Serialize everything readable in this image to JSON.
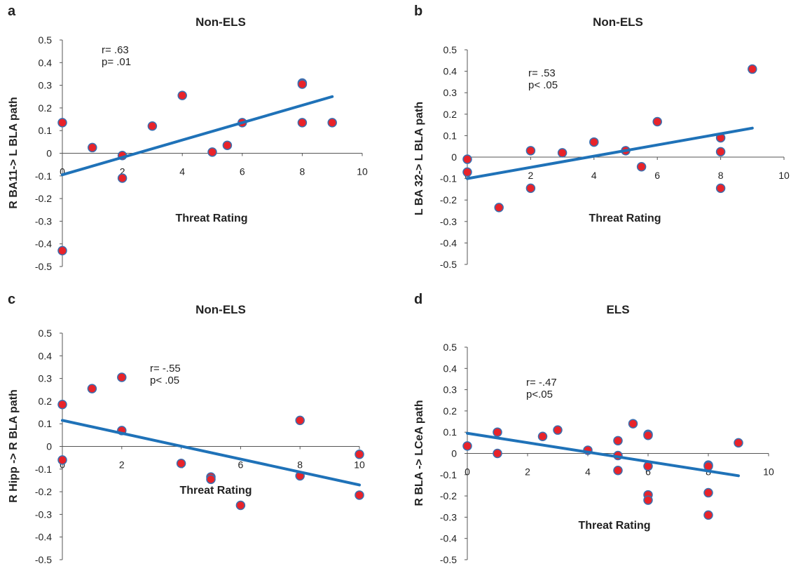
{
  "colors": {
    "point_fill": "#e8232a",
    "point_stroke": "#3a6fb0",
    "fit_line": "#1f72b8",
    "axis": "#555555"
  },
  "chart_data": [
    {
      "type": "scatter",
      "panel": "a",
      "title": "Non-ELS",
      "xlabel": "Threat Rating",
      "ylabel": "R BA11-> L BLA path",
      "xlim": [
        0,
        10
      ],
      "ylim": [
        -0.5,
        0.5
      ],
      "xticks": [
        "0",
        "2",
        "4",
        "6",
        "8",
        "10"
      ],
      "yticks": [
        "0.5",
        "0.4",
        "0.3",
        "0.2",
        "0.1",
        "0",
        "-0.1",
        "-0.2",
        "-0.3",
        "-0.4",
        "-0.5"
      ],
      "annotation": [
        "r= .63",
        "p= .01"
      ],
      "points": [
        [
          0,
          0.135
        ],
        [
          0,
          -0.43
        ],
        [
          1,
          0.025
        ],
        [
          2,
          -0.01
        ],
        [
          2,
          -0.11
        ],
        [
          3,
          0.12
        ],
        [
          4,
          0.255
        ],
        [
          5,
          0.005
        ],
        [
          5.5,
          0.035
        ],
        [
          6,
          0.135
        ],
        [
          8,
          0.31
        ],
        [
          8,
          0.305
        ],
        [
          8,
          0.135
        ],
        [
          9,
          0.135
        ]
      ],
      "fit": [
        [
          0,
          -0.095
        ],
        [
          9,
          0.25
        ]
      ],
      "grid": false
    },
    {
      "type": "scatter",
      "panel": "b",
      "title": "Non-ELS",
      "xlabel": "Threat Rating",
      "ylabel": "L BA 32-> L BLA path",
      "xlim": [
        0,
        10
      ],
      "ylim": [
        -0.5,
        0.5
      ],
      "xticks": [
        "0",
        "2",
        "4",
        "6",
        "8",
        "10"
      ],
      "yticks": [
        "0.5",
        "0.4",
        "0.3",
        "0.2",
        "0.1",
        "0",
        "-0.1",
        "-0.2",
        "-0.3",
        "-0.4",
        "-0.5"
      ],
      "annotation": [
        "r= .53",
        "p< .05"
      ],
      "points": [
        [
          0,
          -0.01
        ],
        [
          0,
          -0.07
        ],
        [
          1,
          -0.235
        ],
        [
          2,
          0.03
        ],
        [
          2,
          -0.145
        ],
        [
          3,
          0.02
        ],
        [
          4,
          0.07
        ],
        [
          5,
          0.03
        ],
        [
          5.5,
          -0.045
        ],
        [
          6,
          0.165
        ],
        [
          8,
          0.09
        ],
        [
          8,
          0.025
        ],
        [
          8,
          -0.145
        ],
        [
          9,
          0.41
        ]
      ],
      "fit": [
        [
          0,
          -0.1
        ],
        [
          9,
          0.135
        ]
      ],
      "grid": false
    },
    {
      "type": "scatter",
      "panel": "c",
      "title": "Non-ELS",
      "xlabel": "Threat Rating",
      "ylabel": "R Hipp -> R BLA path",
      "xlim": [
        0,
        10
      ],
      "ylim": [
        -0.5,
        0.5
      ],
      "xticks": [
        "0",
        "2",
        "4",
        "6",
        "8",
        "10"
      ],
      "yticks": [
        "0.5",
        "0.4",
        "0.3",
        "0.2",
        "0.1",
        "0",
        "-0.1",
        "-0.2",
        "-0.3",
        "-0.4",
        "-0.5"
      ],
      "annotation": [
        "r= -.55",
        "p< .05"
      ],
      "points": [
        [
          0,
          0.185
        ],
        [
          0,
          -0.06
        ],
        [
          1,
          0.255
        ],
        [
          2,
          0.305
        ],
        [
          2,
          0.07
        ],
        [
          4,
          -0.075
        ],
        [
          5,
          -0.135
        ],
        [
          5,
          -0.145
        ],
        [
          6,
          -0.26
        ],
        [
          8,
          0.115
        ],
        [
          8,
          -0.13
        ],
        [
          10,
          -0.035
        ],
        [
          10,
          -0.215
        ]
      ],
      "fit": [
        [
          0,
          0.115
        ],
        [
          10,
          -0.17
        ]
      ],
      "grid": false
    },
    {
      "type": "scatter",
      "panel": "d",
      "title": "ELS",
      "xlabel": "Threat Rating",
      "ylabel": "R BLA -> LCeA path",
      "xlim": [
        0,
        10
      ],
      "ylim": [
        -0.5,
        0.5
      ],
      "xticks": [
        "0",
        "2",
        "4",
        "6",
        "8",
        "10"
      ],
      "yticks": [
        "0.5",
        "0.4",
        "0.3",
        "0.2",
        "0.1",
        "0",
        "-0.1",
        "-0.2",
        "-0.3",
        "-0.4",
        "-0.5"
      ],
      "annotation": [
        "r= -.47",
        "p<.05"
      ],
      "points": [
        [
          0,
          0.035
        ],
        [
          1,
          0.1
        ],
        [
          1,
          0.0
        ],
        [
          2.5,
          0.08
        ],
        [
          3,
          0.11
        ],
        [
          4,
          0.015
        ],
        [
          5,
          0.06
        ],
        [
          5,
          -0.01
        ],
        [
          5,
          -0.08
        ],
        [
          5.5,
          0.14
        ],
        [
          6,
          0.09
        ],
        [
          6,
          0.085
        ],
        [
          6,
          -0.06
        ],
        [
          6,
          -0.195
        ],
        [
          6,
          -0.22
        ],
        [
          8,
          -0.055
        ],
        [
          8,
          -0.06
        ],
        [
          8,
          -0.185
        ],
        [
          8,
          -0.29
        ],
        [
          9,
          0.05
        ]
      ],
      "fit": [
        [
          0,
          0.095
        ],
        [
          9,
          -0.105
        ]
      ],
      "grid": false
    }
  ]
}
